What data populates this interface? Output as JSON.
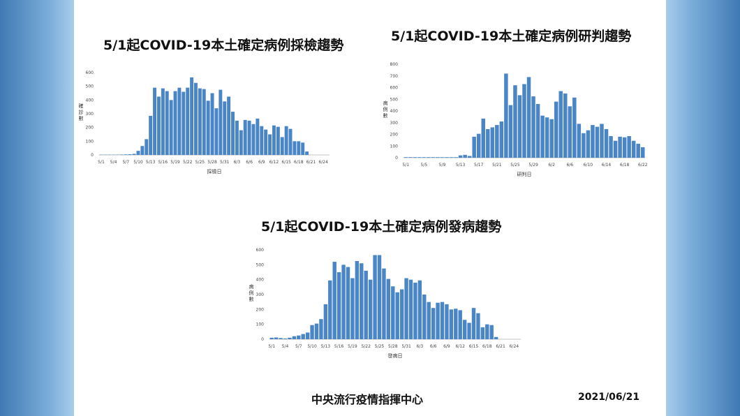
{
  "footer": {
    "org": "中央流行疫情指揮中心",
    "date": "2021/06/21"
  },
  "colors": {
    "bar": "#4a86c6",
    "sidebar": "#5a8fc2"
  },
  "chart_data": [
    {
      "id": "sampling",
      "type": "bar",
      "title": "5/1起COVID-19本土確定病例採檢趨勢",
      "xlabel": "採檢日",
      "ylabel": "確診數",
      "ylim": [
        0,
        600
      ],
      "yticks": [
        0,
        100,
        200,
        300,
        400,
        500,
        600
      ],
      "xtick_labels": [
        "5/1",
        "5/4",
        "5/7",
        "5/10",
        "5/13",
        "5/16",
        "5/19",
        "5/22",
        "5/25",
        "5/28",
        "5/31",
        "6/3",
        "6/6",
        "6/9",
        "6/12",
        "6/15",
        "6/18",
        "6/21",
        "6/24"
      ],
      "categories": [
        "5/1",
        "5/2",
        "5/3",
        "5/4",
        "5/5",
        "5/6",
        "5/7",
        "5/8",
        "5/9",
        "5/10",
        "5/11",
        "5/12",
        "5/13",
        "5/14",
        "5/15",
        "5/16",
        "5/17",
        "5/18",
        "5/19",
        "5/20",
        "5/21",
        "5/22",
        "5/23",
        "5/24",
        "5/25",
        "5/26",
        "5/27",
        "5/28",
        "5/29",
        "5/30",
        "5/31",
        "6/1",
        "6/2",
        "6/3",
        "6/4",
        "6/5",
        "6/6",
        "6/7",
        "6/8",
        "6/9",
        "6/10",
        "6/11",
        "6/12",
        "6/13",
        "6/14",
        "6/15",
        "6/16",
        "6/17",
        "6/18",
        "6/19",
        "6/20",
        "6/21",
        "6/22",
        "6/23",
        "6/24",
        "6/25"
      ],
      "values": [
        2,
        2,
        2,
        2,
        2,
        3,
        4,
        5,
        8,
        30,
        65,
        115,
        285,
        490,
        425,
        485,
        465,
        400,
        465,
        490,
        460,
        490,
        565,
        525,
        485,
        480,
        395,
        450,
        340,
        475,
        390,
        425,
        315,
        250,
        180,
        255,
        250,
        225,
        265,
        210,
        185,
        150,
        215,
        205,
        130,
        210,
        190,
        100,
        100,
        90,
        25,
        0,
        0,
        0,
        0,
        0
      ]
    },
    {
      "id": "diagnosis",
      "type": "bar",
      "title": "5/1起COVID-19本土確定病例研判趨勢",
      "xlabel": "研判日",
      "ylabel": "病例數",
      "ylim": [
        0,
        800
      ],
      "yticks": [
        0,
        100,
        200,
        300,
        400,
        500,
        600,
        700,
        800
      ],
      "xtick_labels": [
        "5/1",
        "5/5",
        "5/9",
        "5/13",
        "5/17",
        "5/21",
        "5/25",
        "5/29",
        "6/2",
        "6/6",
        "6/10",
        "6/14",
        "6/18",
        "6/22"
      ],
      "categories": [
        "5/1",
        "5/2",
        "5/3",
        "5/4",
        "5/5",
        "5/6",
        "5/7",
        "5/8",
        "5/9",
        "5/10",
        "5/11",
        "5/12",
        "5/13",
        "5/14",
        "5/15",
        "5/16",
        "5/17",
        "5/18",
        "5/19",
        "5/20",
        "5/21",
        "5/22",
        "5/23",
        "5/24",
        "5/25",
        "5/26",
        "5/27",
        "5/28",
        "5/29",
        "5/30",
        "5/31",
        "6/1",
        "6/2",
        "6/3",
        "6/4",
        "6/5",
        "6/6",
        "6/7",
        "6/8",
        "6/9",
        "6/10",
        "6/11",
        "6/12",
        "6/13",
        "6/14",
        "6/15",
        "6/16",
        "6/17",
        "6/18",
        "6/19",
        "6/20",
        "6/21",
        "6/22"
      ],
      "values": [
        5,
        5,
        5,
        5,
        5,
        5,
        5,
        5,
        5,
        5,
        5,
        5,
        20,
        25,
        15,
        180,
        205,
        335,
        245,
        260,
        280,
        310,
        720,
        450,
        620,
        535,
        630,
        690,
        525,
        460,
        360,
        345,
        330,
        480,
        570,
        550,
        440,
        515,
        290,
        210,
        235,
        280,
        265,
        290,
        245,
        185,
        145,
        180,
        175,
        185,
        145,
        120,
        90
      ]
    },
    {
      "id": "onset",
      "type": "bar",
      "title": "5/1起COVID-19本土確定病例發病趨勢",
      "xlabel": "發病日",
      "ylabel": "病例數",
      "ylim": [
        0,
        600
      ],
      "yticks": [
        0,
        100,
        200,
        300,
        400,
        500,
        600
      ],
      "xtick_labels": [
        "5/1",
        "5/4",
        "5/7",
        "5/10",
        "5/13",
        "5/16",
        "5/19",
        "5/22",
        "5/25",
        "5/28",
        "5/31",
        "6/3",
        "6/6",
        "6/9",
        "6/12",
        "6/15",
        "6/18",
        "6/21",
        "6/24"
      ],
      "categories": [
        "5/1",
        "5/2",
        "5/3",
        "5/4",
        "5/5",
        "5/6",
        "5/7",
        "5/8",
        "5/9",
        "5/10",
        "5/11",
        "5/12",
        "5/13",
        "5/14",
        "5/15",
        "5/16",
        "5/17",
        "5/18",
        "5/19",
        "5/20",
        "5/21",
        "5/22",
        "5/23",
        "5/24",
        "5/25",
        "5/26",
        "5/27",
        "5/28",
        "5/29",
        "5/30",
        "5/31",
        "6/1",
        "6/2",
        "6/3",
        "6/4",
        "6/5",
        "6/6",
        "6/7",
        "6/8",
        "6/9",
        "6/10",
        "6/11",
        "6/12",
        "6/13",
        "6/14",
        "6/15",
        "6/16",
        "6/17",
        "6/18",
        "6/19",
        "6/20",
        "6/21",
        "6/22",
        "6/23",
        "6/24",
        "6/25"
      ],
      "values": [
        10,
        12,
        8,
        5,
        10,
        20,
        25,
        35,
        45,
        95,
        105,
        135,
        235,
        395,
        520,
        450,
        500,
        485,
        410,
        525,
        510,
        460,
        400,
        565,
        565,
        475,
        405,
        355,
        315,
        335,
        410,
        400,
        380,
        395,
        300,
        250,
        210,
        245,
        250,
        235,
        200,
        205,
        195,
        130,
        110,
        210,
        175,
        80,
        100,
        95,
        15,
        0,
        0,
        0,
        0,
        0
      ]
    }
  ]
}
